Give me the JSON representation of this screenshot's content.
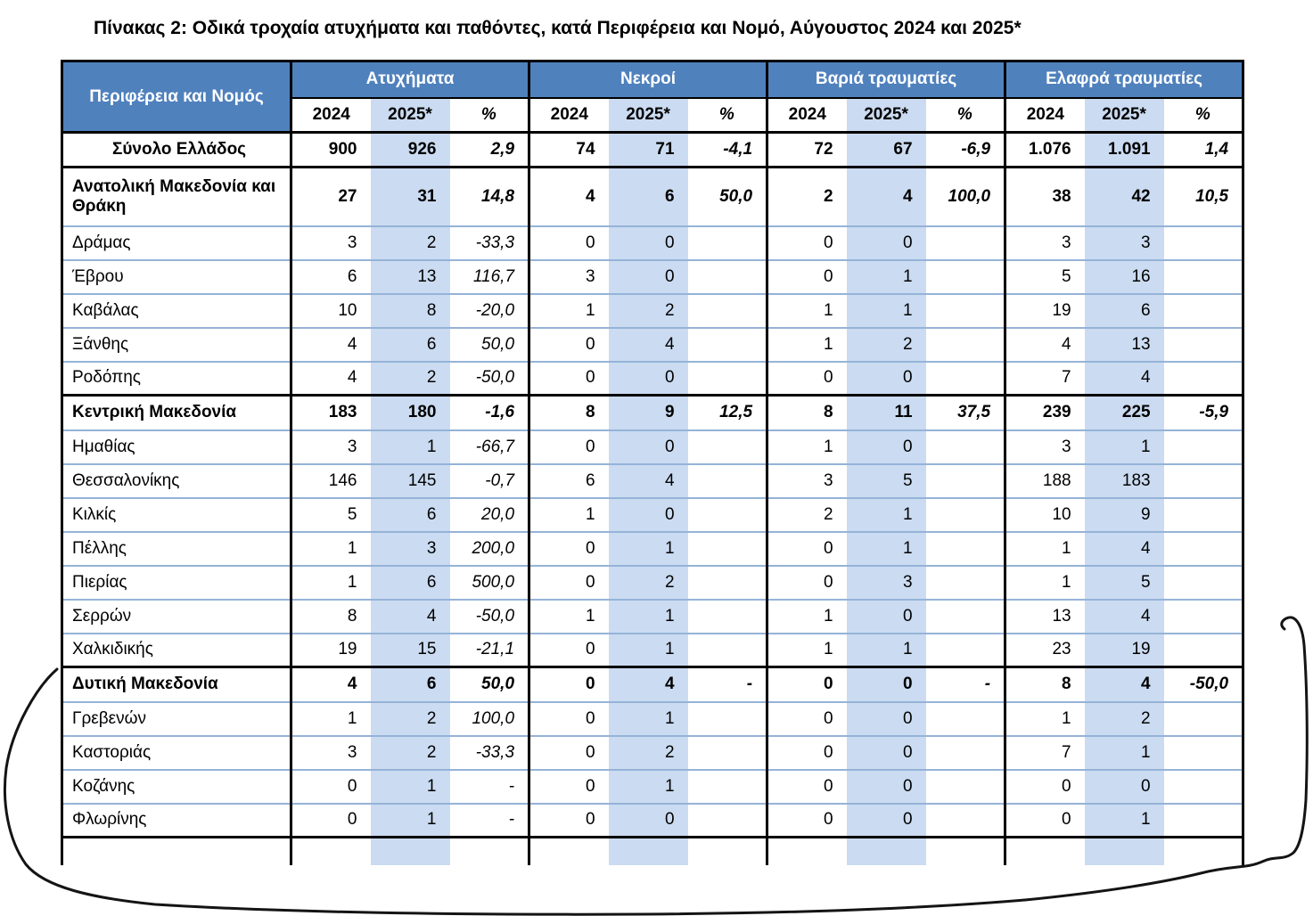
{
  "page_title": "Πίνακας 2: Οδικά τροχαία ατυχήματα και παθόντες, κατά Περιφέρεια και Νομό, Αύγουστος 2024 και 2025*",
  "colors": {
    "header_blue": "#4F81BD",
    "shade_blue": "#CBDBF1",
    "row_separator_blue": "#95B3D7",
    "grid_black": "#000000",
    "annotation_ink": "#141414"
  },
  "table": {
    "region_col_header": "Περιφέρεια και Νομός",
    "group_headers": [
      "Ατυχήματα",
      "Νεκροί",
      "Βαριά τραυματίες",
      "Ελαφρά τραυματίες"
    ],
    "sub_headers": [
      "2024",
      "2025*",
      "%"
    ],
    "rows": [
      {
        "name": "Σύνολο Ελλάδος",
        "type": "total",
        "values": [
          "900",
          "926",
          "2,9",
          "74",
          "71",
          "-4,1",
          "72",
          "67",
          "-6,9",
          "1.076",
          "1.091",
          "1,4"
        ]
      },
      {
        "name": "Ανατολική Μακεδονία και Θράκη",
        "type": "region2l",
        "values": [
          "27",
          "31",
          "14,8",
          "4",
          "6",
          "50,0",
          "2",
          "4",
          "100,0",
          "38",
          "42",
          "10,5"
        ]
      },
      {
        "name": "Δράμας",
        "type": "prefecture",
        "values": [
          "3",
          "2",
          "-33,3",
          "0",
          "0",
          "",
          "0",
          "0",
          "",
          "3",
          "3",
          ""
        ]
      },
      {
        "name": "Έβρου",
        "type": "prefecture",
        "values": [
          "6",
          "13",
          "116,7",
          "3",
          "0",
          "",
          "0",
          "1",
          "",
          "5",
          "16",
          ""
        ]
      },
      {
        "name": "Καβάλας",
        "type": "prefecture",
        "values": [
          "10",
          "8",
          "-20,0",
          "1",
          "2",
          "",
          "1",
          "1",
          "",
          "19",
          "6",
          ""
        ]
      },
      {
        "name": "Ξάνθης",
        "type": "prefecture",
        "values": [
          "4",
          "6",
          "50,0",
          "0",
          "4",
          "",
          "1",
          "2",
          "",
          "4",
          "13",
          ""
        ]
      },
      {
        "name": "Ροδόπης",
        "type": "prefecture",
        "values": [
          "4",
          "2",
          "-50,0",
          "0",
          "0",
          "",
          "0",
          "0",
          "",
          "7",
          "4",
          ""
        ]
      },
      {
        "name": "Κεντρική Μακεδονία",
        "type": "region",
        "values": [
          "183",
          "180",
          "-1,6",
          "8",
          "9",
          "12,5",
          "8",
          "11",
          "37,5",
          "239",
          "225",
          "-5,9"
        ]
      },
      {
        "name": "Ημαθίας",
        "type": "prefecture",
        "values": [
          "3",
          "1",
          "-66,7",
          "0",
          "0",
          "",
          "1",
          "0",
          "",
          "3",
          "1",
          ""
        ]
      },
      {
        "name": "Θεσσαλονίκης",
        "type": "prefecture",
        "values": [
          "146",
          "145",
          "-0,7",
          "6",
          "4",
          "",
          "3",
          "5",
          "",
          "188",
          "183",
          ""
        ]
      },
      {
        "name": "Κιλκίς",
        "type": "prefecture",
        "values": [
          "5",
          "6",
          "20,0",
          "1",
          "0",
          "",
          "2",
          "1",
          "",
          "10",
          "9",
          ""
        ]
      },
      {
        "name": "Πέλλης",
        "type": "prefecture",
        "values": [
          "1",
          "3",
          "200,0",
          "0",
          "1",
          "",
          "0",
          "1",
          "",
          "1",
          "4",
          ""
        ]
      },
      {
        "name": "Πιερίας",
        "type": "prefecture",
        "values": [
          "1",
          "6",
          "500,0",
          "0",
          "2",
          "",
          "0",
          "3",
          "",
          "1",
          "5",
          ""
        ]
      },
      {
        "name": "Σερρών",
        "type": "prefecture",
        "values": [
          "8",
          "4",
          "-50,0",
          "1",
          "1",
          "",
          "1",
          "0",
          "",
          "13",
          "4",
          ""
        ]
      },
      {
        "name": "Χαλκιδικής",
        "type": "prefecture",
        "values": [
          "19",
          "15",
          "-21,1",
          "0",
          "1",
          "",
          "1",
          "1",
          "",
          "23",
          "19",
          ""
        ]
      },
      {
        "name": "Δυτική Μακεδονία",
        "type": "region",
        "values": [
          "4",
          "6",
          "50,0",
          "0",
          "4",
          "-",
          "0",
          "0",
          "-",
          "8",
          "4",
          "-50,0"
        ]
      },
      {
        "name": "Γρεβενών",
        "type": "prefecture",
        "values": [
          "1",
          "2",
          "100,0",
          "0",
          "1",
          "",
          "0",
          "0",
          "",
          "1",
          "2",
          ""
        ]
      },
      {
        "name": "Καστοριάς",
        "type": "prefecture",
        "values": [
          "3",
          "2",
          "-33,3",
          "0",
          "2",
          "",
          "0",
          "0",
          "",
          "7",
          "1",
          ""
        ]
      },
      {
        "name": "Κοζάνης",
        "type": "prefecture",
        "values": [
          "0",
          "1",
          "-",
          "0",
          "1",
          "",
          "0",
          "0",
          "",
          "0",
          "0",
          ""
        ]
      },
      {
        "name": "Φλωρίνης",
        "type": "prefecture",
        "values": [
          "0",
          "1",
          "-",
          "0",
          "0",
          "",
          "0",
          "0",
          "",
          "0",
          "1",
          ""
        ]
      }
    ]
  },
  "annotation": {
    "description": "hand-drawn pen loop circling the Δυτική Μακεδονία rows and bottom of table"
  }
}
